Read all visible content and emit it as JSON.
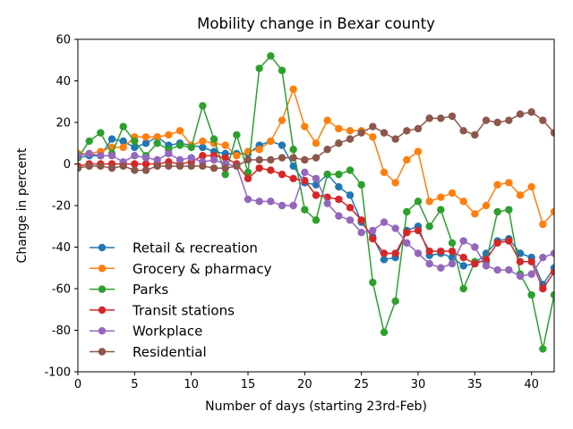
{
  "chart_data": {
    "type": "line",
    "title": "Mobility change in Bexar county",
    "xlabel": "Number of days (starting 23rd-Feb)",
    "ylabel": "Change in percent",
    "xlim": [
      0,
      42
    ],
    "ylim": [
      -100,
      60
    ],
    "xticks": [
      0,
      5,
      10,
      15,
      20,
      25,
      30,
      35,
      40
    ],
    "yticks": [
      -100,
      -80,
      -60,
      -40,
      -20,
      0,
      20,
      40,
      60
    ],
    "grid": false,
    "legend_position": "lower-left",
    "x": [
      0,
      1,
      2,
      3,
      4,
      5,
      6,
      7,
      8,
      9,
      10,
      11,
      12,
      13,
      14,
      15,
      16,
      17,
      18,
      19,
      20,
      21,
      22,
      23,
      24,
      25,
      26,
      27,
      28,
      29,
      30,
      31,
      32,
      33,
      34,
      35,
      36,
      37,
      38,
      39,
      40,
      41,
      42
    ],
    "series": [
      {
        "name": "Retail & recreation",
        "color": "#1f77b4",
        "values": [
          3,
          4,
          4,
          12,
          11,
          8,
          10,
          13,
          9,
          10,
          9,
          8,
          6,
          5,
          5,
          5,
          9,
          11,
          9,
          -1,
          -9,
          -10,
          -5,
          -11,
          -15,
          -28,
          -35,
          -46,
          -45,
          -32,
          -30,
          -44,
          -43,
          -45,
          -49,
          -48,
          -43,
          -37,
          -36,
          -43,
          -45,
          -58,
          -50
        ]
      },
      {
        "name": "Grocery & pharmacy",
        "color": "#ff7f0e",
        "values": [
          5,
          5,
          6,
          8,
          8,
          13,
          13,
          13,
          14,
          16,
          9,
          11,
          10,
          9,
          4,
          6,
          7,
          11,
          21,
          36,
          18,
          10,
          21,
          17,
          16,
          16,
          13,
          -4,
          -9,
          2,
          6,
          -18,
          -16,
          -14,
          -18,
          -24,
          -20,
          -10,
          -9,
          -15,
          -11,
          -29,
          -23
        ]
      },
      {
        "name": "Parks",
        "color": "#2ca02c",
        "values": [
          3,
          11,
          15,
          5,
          18,
          11,
          4,
          10,
          7,
          9,
          8,
          28,
          12,
          -5,
          14,
          -4,
          46,
          52,
          45,
          7,
          -22,
          -27,
          -5,
          -5,
          -3,
          -10,
          -57,
          -81,
          -66,
          -23,
          -18,
          -30,
          -22,
          -38,
          -60,
          -47,
          -47,
          -23,
          -22,
          -53,
          -63,
          -89,
          -63
        ]
      },
      {
        "name": "Transit stations",
        "color": "#d62728",
        "values": [
          -1,
          0,
          0,
          0,
          0,
          0,
          0,
          0,
          1,
          0,
          1,
          4,
          4,
          3,
          0,
          -7,
          -2,
          -3,
          -5,
          -7,
          -8,
          -15,
          -16,
          -17,
          -21,
          -27,
          -36,
          -43,
          -43,
          -33,
          -32,
          -42,
          -42,
          -42,
          -45,
          -48,
          -46,
          -38,
          -37,
          -47,
          -47,
          -60,
          -52
        ]
      },
      {
        "name": "Workplace",
        "color": "#9467bd",
        "values": [
          4,
          5,
          4,
          4,
          1,
          4,
          3,
          2,
          5,
          2,
          3,
          1,
          2,
          0,
          -1,
          -17,
          -18,
          -18,
          -20,
          -20,
          -4,
          -7,
          -19,
          -25,
          -27,
          -33,
          -32,
          -28,
          -31,
          -38,
          -43,
          -48,
          -50,
          -48,
          -37,
          -40,
          -49,
          -51,
          -51,
          -54,
          -53,
          -45,
          -43
        ]
      },
      {
        "name": "Residential",
        "color": "#8c564b",
        "values": [
          -2,
          -1,
          -1,
          -2,
          -1,
          -3,
          -3,
          -1,
          -1,
          -1,
          -1,
          -1,
          -2,
          -2,
          -1,
          2,
          2,
          2,
          3,
          3,
          2,
          3,
          7,
          10,
          12,
          15,
          18,
          15,
          12,
          16,
          17,
          22,
          22,
          23,
          16,
          14,
          21,
          20,
          21,
          24,
          25,
          21,
          15
        ]
      }
    ]
  }
}
